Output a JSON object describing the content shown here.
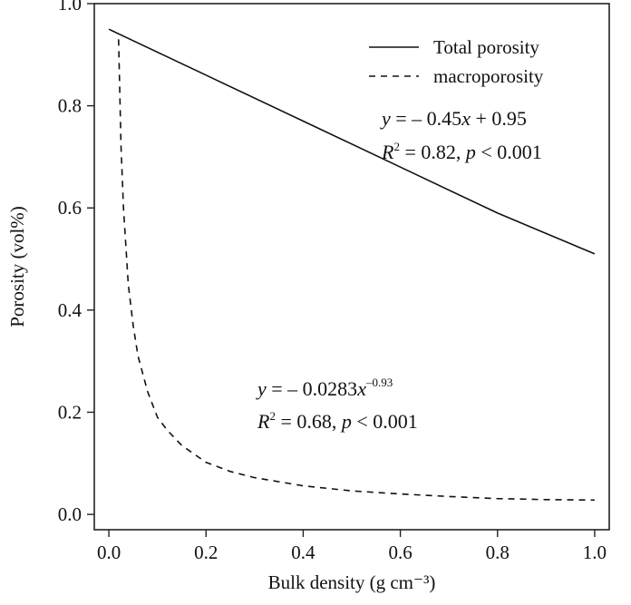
{
  "chart_data": {
    "type": "line",
    "xlabel": "Bulk density (g cm⁻³)",
    "ylabel": "Porosity (vol%)",
    "xlim": [
      -0.03,
      1.03
    ],
    "ylim": [
      -0.03,
      1.0
    ],
    "xticks": [
      0.0,
      0.2,
      0.4,
      0.6,
      0.8,
      1.0
    ],
    "yticks": [
      0.0,
      0.2,
      0.4,
      0.6,
      0.8,
      1.0
    ],
    "xtick_labels": [
      "0.0",
      "0.2",
      "0.4",
      "0.6",
      "0.8",
      "1.0"
    ],
    "ytick_labels": [
      "0.0",
      "0.2",
      "0.4",
      "0.6",
      "0.8",
      "1.0"
    ],
    "grid": false,
    "legend_position": "top-right",
    "series": [
      {
        "name": "Total porosity",
        "style": "solid",
        "x": [
          0.0,
          0.2,
          0.4,
          0.6,
          0.8,
          1.0
        ],
        "y": [
          0.95,
          0.86,
          0.77,
          0.68,
          0.59,
          0.51
        ]
      },
      {
        "name": "macroporosity",
        "style": "dashed",
        "x": [
          0.02,
          0.025,
          0.03,
          0.04,
          0.05,
          0.06,
          0.08,
          0.1,
          0.12,
          0.15,
          0.2,
          0.25,
          0.3,
          0.4,
          0.5,
          0.6,
          0.7,
          0.8,
          0.9,
          1.0
        ],
        "y": [
          0.93,
          0.72,
          0.6,
          0.45,
          0.37,
          0.31,
          0.24,
          0.19,
          0.165,
          0.135,
          0.102,
          0.084,
          0.072,
          0.056,
          0.046,
          0.04,
          0.035,
          0.031,
          0.029,
          0.028
        ]
      }
    ],
    "annotations": {
      "total": {
        "eq_y": "y",
        "eq_rest": " = – 0.45",
        "eq_x": "x",
        "eq_tail": " + 0.95",
        "r": "R",
        "r_sup": "2",
        "r_rest": " = 0.82, ",
        "p": "p",
        "p_rest": " < 0.001"
      },
      "macro": {
        "eq_y": "y",
        "eq_rest": " = – 0.0283",
        "eq_x": "x",
        "eq_exp": "–0.93",
        "r": "R",
        "r_sup": "2",
        "r_rest": " = 0.68, ",
        "p": "p",
        "p_rest": " < 0.001"
      }
    }
  }
}
